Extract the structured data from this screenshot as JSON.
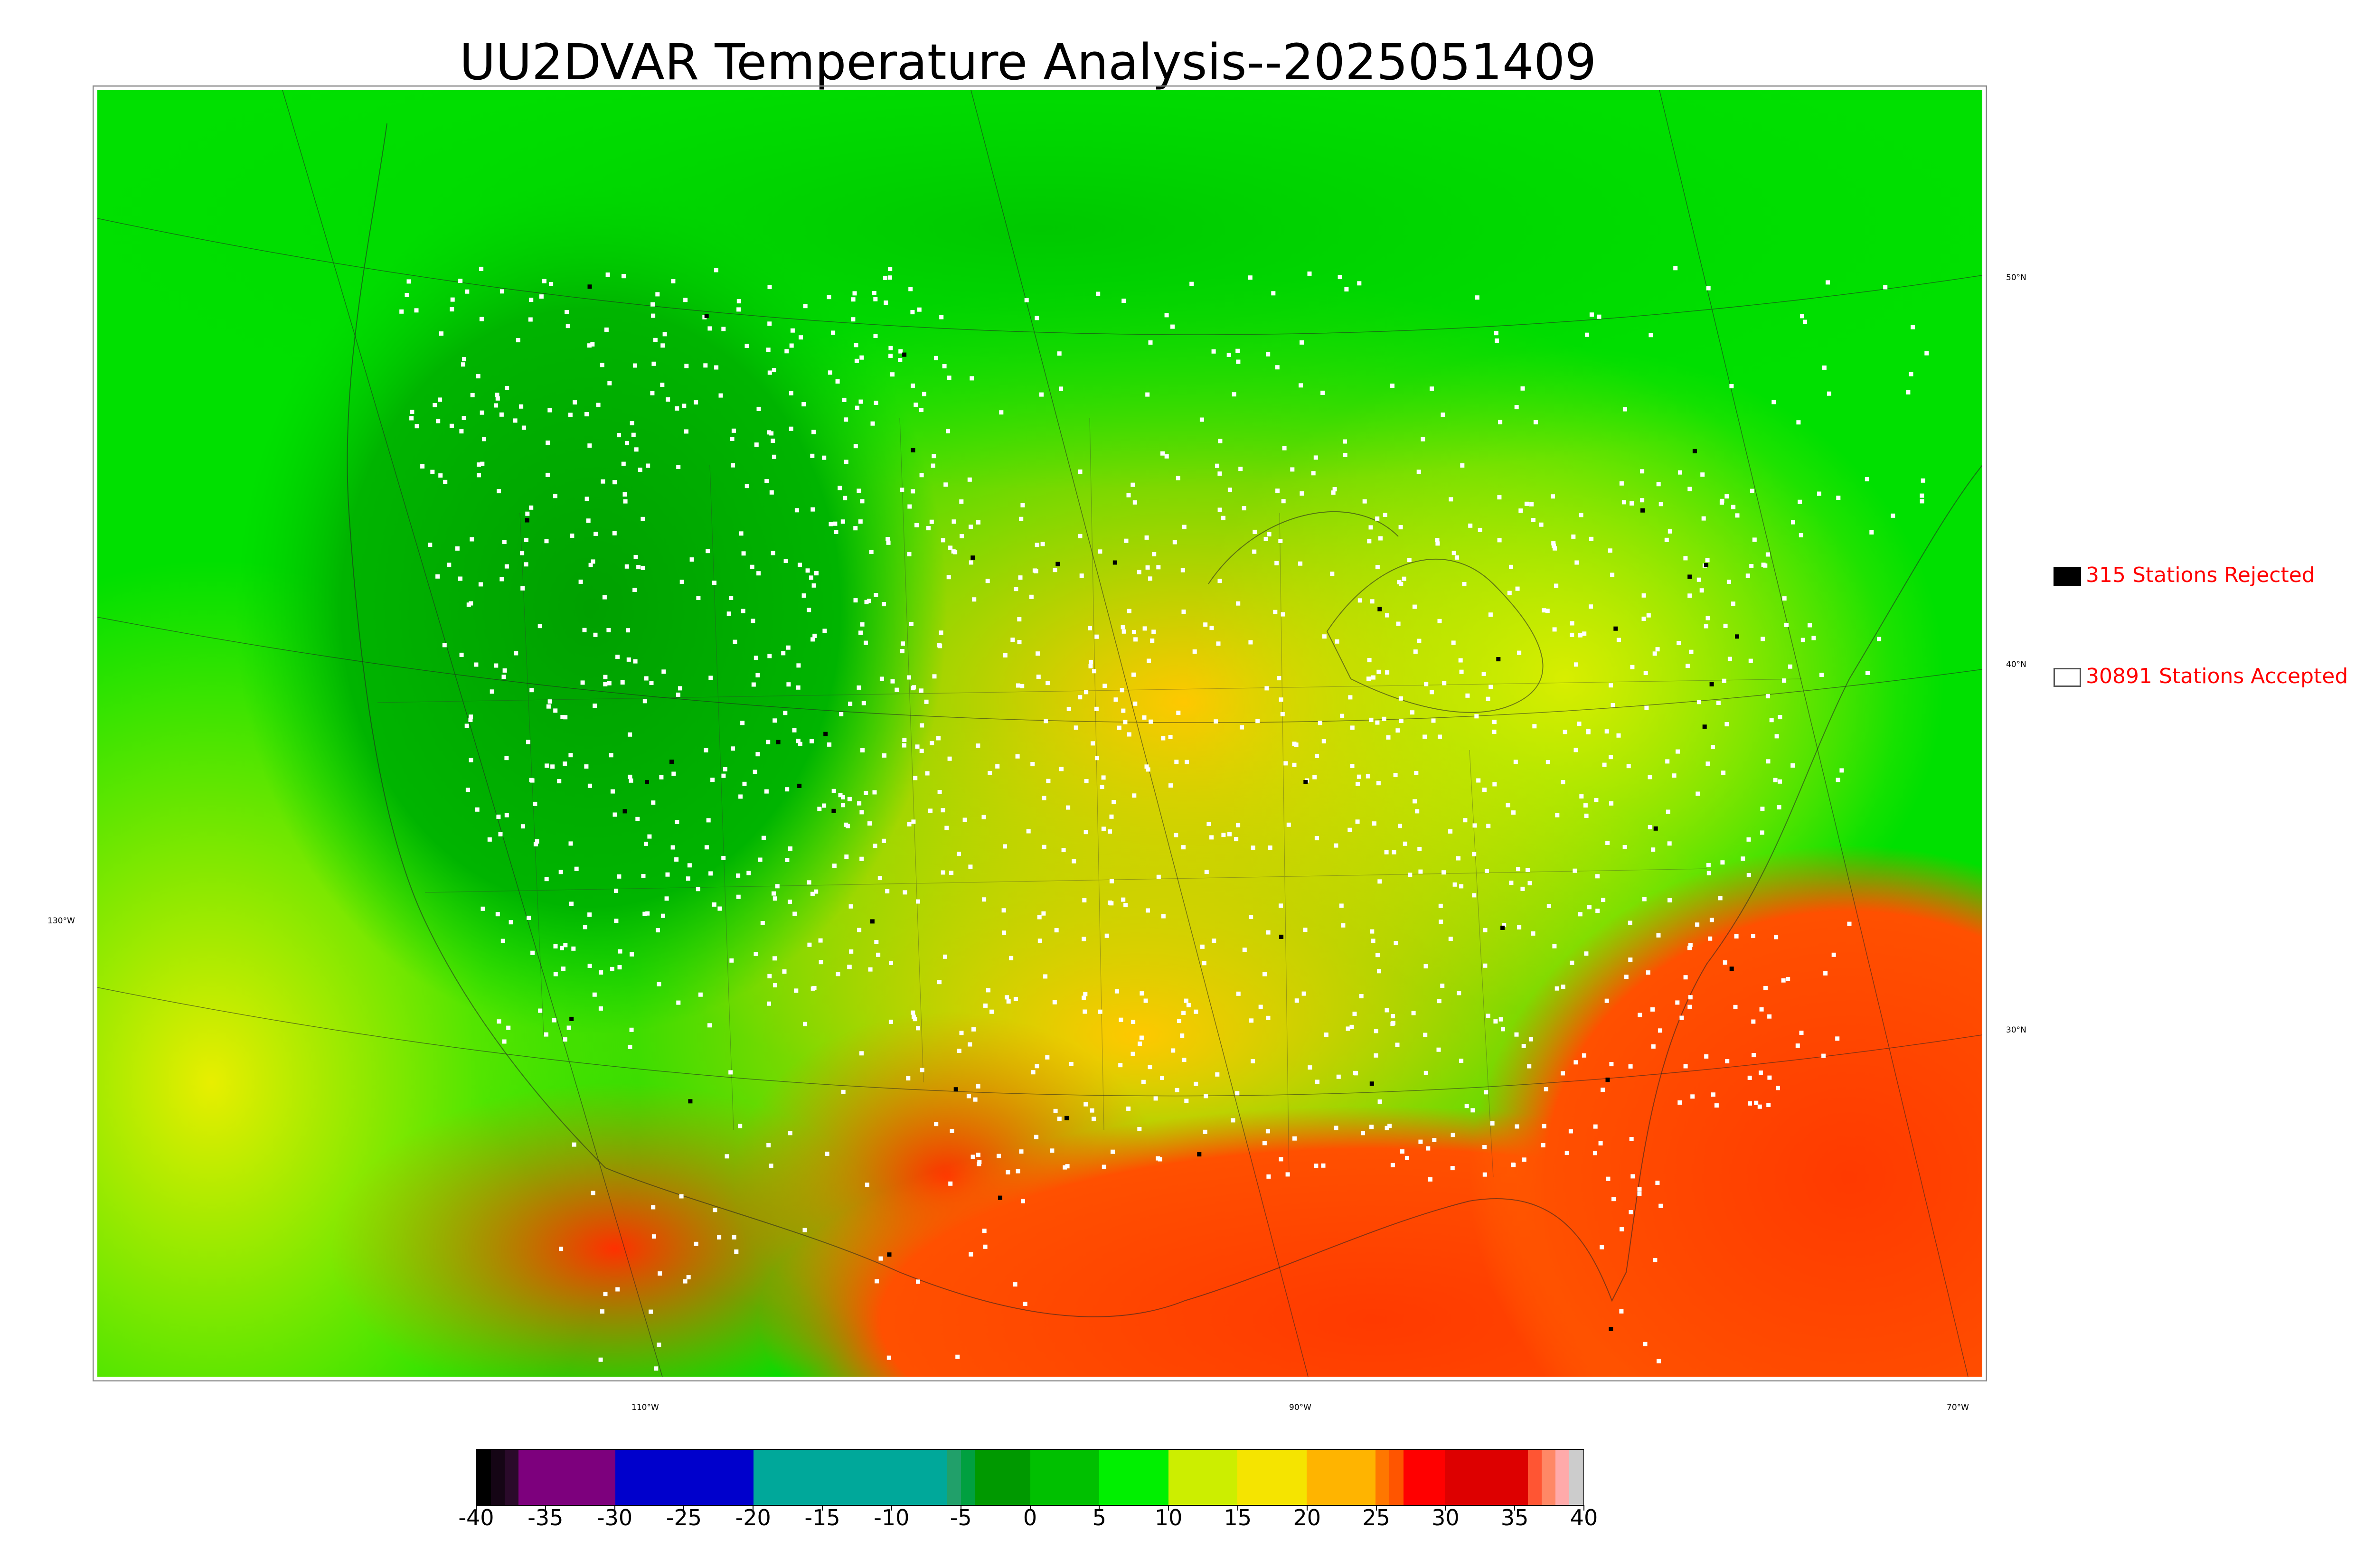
{
  "title": "UU2DVAR Temperature Analysis--2025051409",
  "legend": {
    "rejected": {
      "label": "315 Stations Rejected",
      "count": 315,
      "swatch_color": "#000000"
    },
    "accepted": {
      "label": "30891 Stations Accepted",
      "count": 30891,
      "swatch_color": "#ffffff"
    }
  },
  "graticule_labels": {
    "lat_50": "50°N",
    "lat_40": "40°N",
    "lat_30": "30°N",
    "lon_130": "130°W",
    "lon_110": "110°W",
    "lon_90": "90°W",
    "lon_70": "70°W"
  },
  "colorbar": {
    "min": -40,
    "max": 40,
    "ticks": [
      "-40",
      "-35",
      "-30",
      "-25",
      "-20",
      "-15",
      "-10",
      "-5",
      "0",
      "5",
      "10",
      "15",
      "20",
      "25",
      "30",
      "35",
      "40"
    ],
    "segments": [
      {
        "from": -40,
        "to": -39,
        "color": "#000000"
      },
      {
        "from": -39,
        "to": -38,
        "color": "#150515"
      },
      {
        "from": -38,
        "to": -37,
        "color": "#2a0a2a"
      },
      {
        "from": -37,
        "to": -30,
        "color": "#7d007d"
      },
      {
        "from": -30,
        "to": -20,
        "color": "#0000cc"
      },
      {
        "from": -20,
        "to": -6,
        "color": "#00a89a"
      },
      {
        "from": -6,
        "to": -5,
        "color": "#21a06a"
      },
      {
        "from": -5,
        "to": -4,
        "color": "#00a040"
      },
      {
        "from": -4,
        "to": 0,
        "color": "#009900"
      },
      {
        "from": 0,
        "to": 5,
        "color": "#00c000"
      },
      {
        "from": 5,
        "to": 10,
        "color": "#00f000"
      },
      {
        "from": 10,
        "to": 15,
        "color": "#ccee00"
      },
      {
        "from": 15,
        "to": 20,
        "color": "#f5e400"
      },
      {
        "from": 20,
        "to": 25,
        "color": "#ffb400"
      },
      {
        "from": 25,
        "to": 26,
        "color": "#ff7700"
      },
      {
        "from": 26,
        "to": 27,
        "color": "#ff5500"
      },
      {
        "from": 27,
        "to": 30,
        "color": "#ff0000"
      },
      {
        "from": 30,
        "to": 36,
        "color": "#dd0000"
      },
      {
        "from": 36,
        "to": 37,
        "color": "#ff5533"
      },
      {
        "from": 37,
        "to": 38,
        "color": "#ff8866"
      },
      {
        "from": 38,
        "to": 39,
        "color": "#ffaaaa"
      },
      {
        "from": 39,
        "to": 40,
        "color": "#cccccc"
      }
    ]
  },
  "map_colors": {
    "cold_mountain": "#00a000",
    "cool": "#00e000",
    "mild": "#d8ee00",
    "warm": "#ffd000",
    "hot": "#ff6a00",
    "very_hot": "#ff2000",
    "ocean_pacific": "#e5ee00",
    "ocean_gulf": "#ff5000",
    "ocean_atlantic_south": "#ff4a10",
    "station_accepted": "#ffffff",
    "station_rejected": "#000000"
  }
}
